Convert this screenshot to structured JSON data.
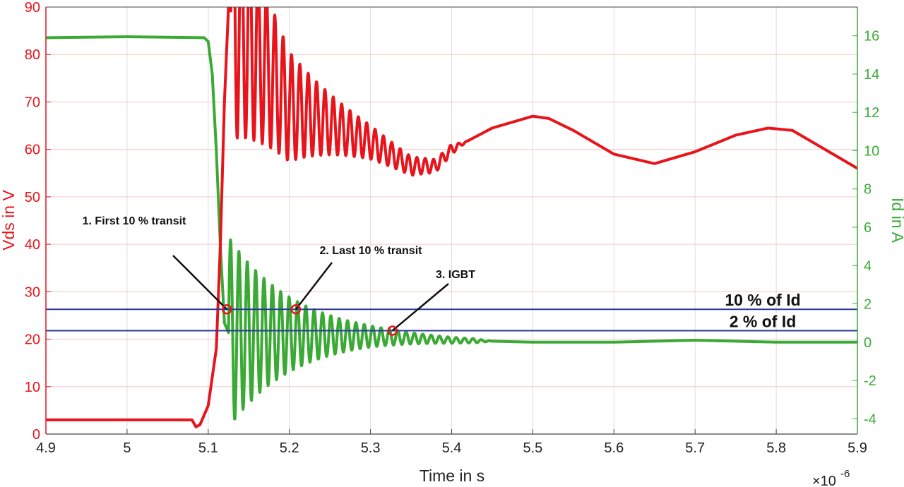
{
  "chart_data": {
    "type": "line",
    "xlabel": "Time in s",
    "x_exponent_label": "×10",
    "x_exponent": "-6",
    "xlim": [
      4.9,
      5.9
    ],
    "x_ticks": [
      4.9,
      5.0,
      5.1,
      5.2,
      5.3,
      5.4,
      5.5,
      5.6,
      5.7,
      5.8,
      5.9
    ],
    "x_tick_labels": [
      "4.9",
      "5",
      "5.1",
      "5.2",
      "5.3",
      "5.4",
      "5.5",
      "5.6",
      "5.7",
      "5.8",
      "5.9"
    ],
    "y_left": {
      "label": "Vds in V",
      "lim": [
        0,
        90
      ],
      "ticks": [
        0,
        10,
        20,
        30,
        40,
        50,
        60,
        70,
        80,
        90
      ],
      "color": "#e8141c"
    },
    "y_right": {
      "label": "Id in A",
      "lim": [
        -4.8,
        17.5
      ],
      "ticks": [
        -4,
        -2,
        0,
        2,
        4,
        6,
        8,
        10,
        12,
        14,
        16
      ],
      "tick_labels": [
        "-4",
        "-2",
        "0",
        "2",
        "4",
        "6",
        "8",
        "10",
        "12",
        "14",
        "16"
      ],
      "color": "#3aaa35"
    },
    "grid": true,
    "series": [
      {
        "axis": "left",
        "color": "#e8141c",
        "x": [
          4.9,
          5.0,
          5.08,
          5.085,
          5.09,
          5.1,
          5.11,
          5.115,
          5.12,
          5.125,
          5.15,
          5.2,
          5.3,
          5.35,
          5.38,
          5.4,
          5.45,
          5.5,
          5.52,
          5.55,
          5.6,
          5.65,
          5.7,
          5.75,
          5.79,
          5.82,
          5.85,
          5.9
        ],
        "y": [
          3,
          3,
          3,
          1.5,
          2,
          6,
          18,
          40,
          70,
          90,
          83,
          69,
          61.5,
          56.5,
          56.5,
          60,
          64.5,
          67,
          66.5,
          64,
          59,
          57,
          59.5,
          63,
          64.5,
          64,
          61,
          56
        ],
        "oscillation": {
          "start": 5.128,
          "end": 5.42,
          "period": 0.0103,
          "amplitude_start": 27,
          "decay_tau": 0.085
        }
      },
      {
        "axis": "right",
        "color": "#3aaa35",
        "x": [
          4.9,
          5.0,
          5.095,
          5.1,
          5.105,
          5.11,
          5.115,
          5.12,
          5.125,
          5.13,
          5.2,
          5.3,
          5.4,
          5.5,
          5.6,
          5.7,
          5.8,
          5.9
        ],
        "y": [
          15.9,
          15.95,
          15.9,
          15.7,
          14,
          10,
          5,
          1,
          0.5,
          0.5,
          0.4,
          0.3,
          0.1,
          0.0,
          0.0,
          0.1,
          0.0,
          0.0
        ],
        "oscillation": {
          "start": 5.125,
          "end": 5.45,
          "period": 0.0103,
          "amplitude_start": 5,
          "decay_tau": 0.08
        }
      }
    ],
    "hlines": [
      {
        "value": 26.3,
        "axis": "left",
        "label": "10 % of Id",
        "color": "#2b3a99"
      },
      {
        "value": 21.8,
        "axis": "left",
        "label": "2 % of Id",
        "color": "#2b3a99"
      }
    ],
    "markers": [
      {
        "x": 5.123,
        "y": 26.3,
        "label": "1. First 10 % transit"
      },
      {
        "x": 5.208,
        "y": 26.3,
        "label": "2. Last 10 % transit"
      },
      {
        "x": 5.327,
        "y": 21.8,
        "label": "3. IGBT"
      }
    ],
    "line_colors": {
      "vds": "#e8141c",
      "id": "#3aaa35",
      "threshold": "#2b3a99",
      "marker": "#e8141c",
      "annotation": "#111111"
    }
  }
}
